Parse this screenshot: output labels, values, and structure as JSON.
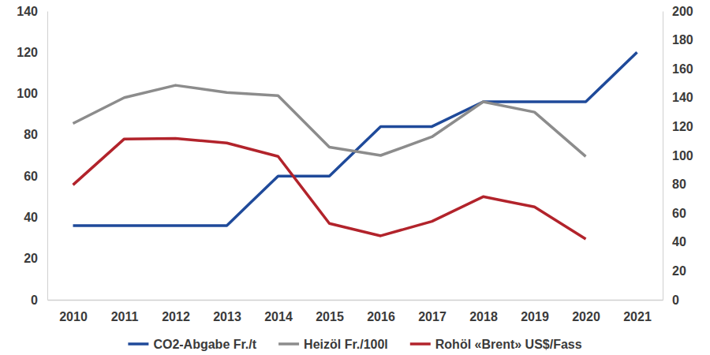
{
  "chart_data": {
    "type": "line",
    "categories": [
      "2010",
      "2011",
      "2012",
      "2013",
      "2014",
      "2015",
      "2016",
      "2017",
      "2018",
      "2019",
      "2020",
      "2021"
    ],
    "series": [
      {
        "name": "CO2-Abgabe Fr./t",
        "color": "#1f4a9a",
        "values": [
          36,
          36,
          36,
          36,
          60,
          60,
          84,
          84,
          96,
          96,
          96,
          120
        ]
      },
      {
        "name": "Heizöl Fr./100l",
        "color": "#8c8c8c",
        "values": [
          85.5,
          98,
          104,
          100.5,
          99,
          74,
          70,
          79,
          96,
          91,
          69.5,
          null
        ]
      },
      {
        "name": "Rohöl «Brent» US$/Fass",
        "color": "#b2232b",
        "axis": "y2",
        "values": [
          79.6,
          111.4,
          111.8,
          108.6,
          99.3,
          52.9,
          44.3,
          54.3,
          71.4,
          64.3,
          42.1,
          null
        ]
      }
    ],
    "ylim": [
      0,
      140
    ],
    "yticks": [
      0,
      20,
      40,
      60,
      80,
      100,
      120,
      140
    ],
    "y2lim": [
      0,
      200
    ],
    "y2ticks": [
      0,
      20,
      40,
      60,
      80,
      100,
      120,
      140,
      160,
      180,
      200
    ],
    "grid": false,
    "legend": "bottom"
  }
}
